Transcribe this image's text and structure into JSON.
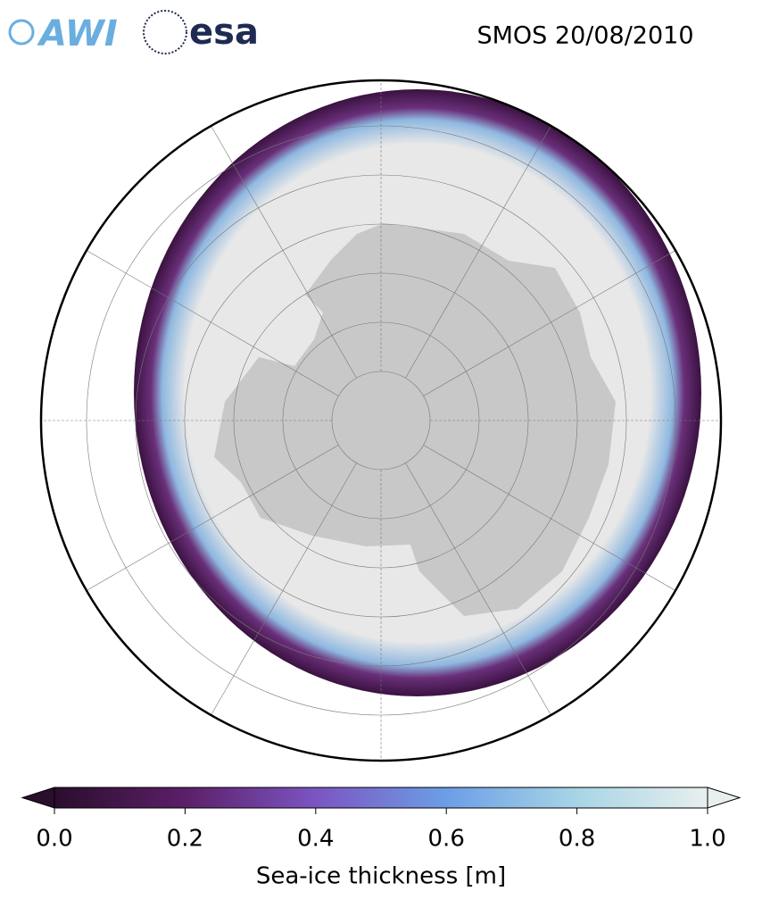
{
  "header": {
    "logos": [
      "AWI",
      "esa"
    ],
    "title": "SMOS 20/08/2010"
  },
  "colorbar": {
    "label": "Sea-ice thickness [m]",
    "lim": [
      0,
      1
    ],
    "colors": [
      "#2a0e2c",
      "#5b1f68",
      "#7b55c2",
      "#6c9ee6",
      "#a7d5e6",
      "#e8efee"
    ],
    "ticks": [
      {
        "value": 0,
        "label": "0.0"
      },
      {
        "value": 0.2,
        "label": "0.2"
      },
      {
        "value": 0.4,
        "label": "0.4"
      },
      {
        "value": 0.6,
        "label": "0.6"
      },
      {
        "value": 0.8,
        "label": "0.8"
      },
      {
        "value": 1,
        "label": "1.0"
      }
    ]
  }
}
